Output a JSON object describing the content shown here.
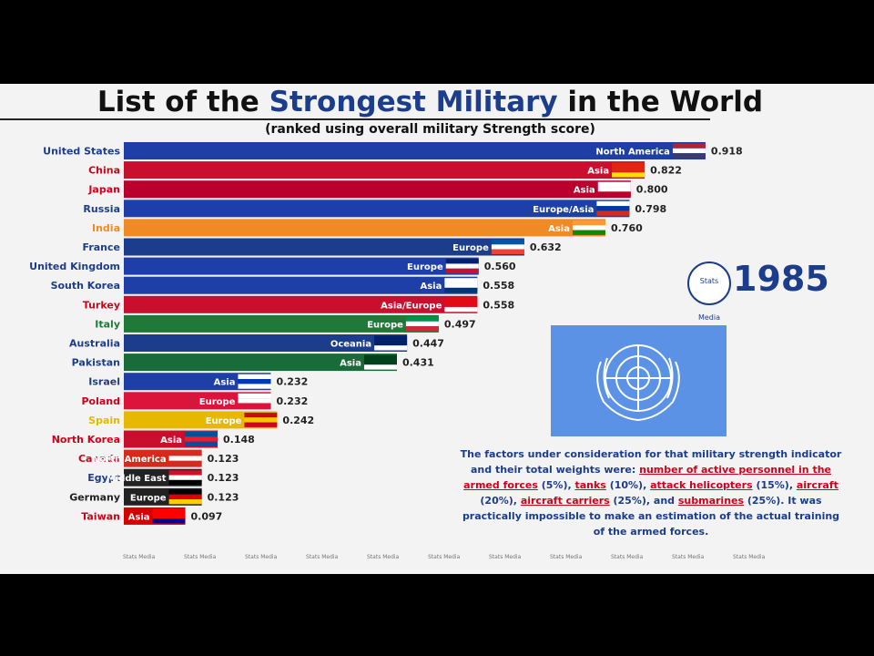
{
  "page": {
    "title_part1": "List of the ",
    "title_highlight": "Strongest Military",
    "title_part2": " in the World",
    "subtitle": "(ranked using overall military Strength score)",
    "year": "1985",
    "badge_text": "Stats Media",
    "note": {
      "intro": "The factors under consideration for that military strength indicator and their total weights were: ",
      "f1": "number of active personnel in the armed forces",
      "t1": " (5%), ",
      "f2": "tanks",
      "t2": " (10%), ",
      "f3": "attack helicopters",
      "t3": " (15%), ",
      "f4": "aircraft",
      "t4": " (20%), ",
      "f5": "aircraft carriers",
      "t5": " (25%), and ",
      "f6": "submarines",
      "t6": " (25%). It was practically impossible to make an estimation of the actual training of the armed forces."
    },
    "watermark": "Stats Media",
    "colors": {
      "brand": "#1c3d8c",
      "highlight": "#d0021b",
      "un_blue": "#5b92e5"
    }
  },
  "chart_data": {
    "type": "bar",
    "orientation": "horizontal",
    "categories": [
      "United States",
      "China",
      "Japan",
      "Russia",
      "India",
      "France",
      "United Kingdom",
      "South Korea",
      "Turkey",
      "Italy",
      "Australia",
      "Pakistan",
      "Israel",
      "Poland",
      "Spain",
      "North Korea",
      "Canada",
      "Egypt",
      "Germany",
      "Taiwan"
    ],
    "values": [
      0.918,
      0.822,
      0.8,
      0.798,
      0.76,
      0.632,
      0.56,
      0.558,
      0.558,
      0.497,
      0.447,
      0.431,
      0.232,
      0.232,
      0.242,
      0.148,
      0.123,
      0.123,
      0.123,
      0.097
    ],
    "value_labels": [
      "0.918",
      "0.822",
      "0.800",
      "0.798",
      "0.760",
      "0.632",
      "0.560",
      "0.558",
      "0.558",
      "0.497",
      "0.447",
      "0.431",
      "0.232",
      "0.232",
      "0.242",
      "0.148",
      "0.123",
      "0.123",
      "0.123",
      "0.097"
    ],
    "regions": [
      "North America",
      "Asia",
      "Asia",
      "Europe/Asia",
      "Asia",
      "Europe",
      "Europe",
      "Asia",
      "Asia/Europe",
      "Europe",
      "Oceania",
      "Asia",
      "Asia",
      "Europe",
      "Europe",
      "Asia",
      "North America",
      "Middle East",
      "Europe",
      "Asia"
    ],
    "bar_colors": [
      "#1f3fa8",
      "#c8102e",
      "#bc002d",
      "#1f3fa8",
      "#f08a24",
      "#1c3d8c",
      "#1f3fa8",
      "#1f3fa8",
      "#c8102e",
      "#1f7a3a",
      "#1c3d8c",
      "#1a6b3a",
      "#1f3fa8",
      "#dc143c",
      "#e6b800",
      "#c8102e",
      "#d52b1e",
      "#222222",
      "#222222",
      "#d40000"
    ],
    "label_colors": [
      "#1c3d8c",
      "#d0021b",
      "#d0021b",
      "#1c3d8c",
      "#f08a24",
      "#1c3d8c",
      "#1c3d8c",
      "#1c3d8c",
      "#d0021b",
      "#1f7a3a",
      "#1c3d8c",
      "#1c3d8c",
      "#1c3d8c",
      "#d0021b",
      "#e6b800",
      "#d0021b",
      "#d0021b",
      "#1c3d8c",
      "#222222",
      "#d0021b"
    ],
    "flag_colors": [
      [
        "#b22234",
        "#ffffff",
        "#3c3b6e"
      ],
      [
        "#de2910",
        "#de2910",
        "#ffde00"
      ],
      [
        "#ffffff",
        "#ffffff",
        "#bc002d"
      ],
      [
        "#ffffff",
        "#0039a6",
        "#d52b1e"
      ],
      [
        "#ff9933",
        "#ffffff",
        "#138808"
      ],
      [
        "#0055a4",
        "#ffffff",
        "#ef4135"
      ],
      [
        "#012169",
        "#ffffff",
        "#c8102e"
      ],
      [
        "#ffffff",
        "#ffffff",
        "#003478"
      ],
      [
        "#e30a17",
        "#e30a17",
        "#ffffff"
      ],
      [
        "#009246",
        "#ffffff",
        "#ce2b37"
      ],
      [
        "#012169",
        "#012169",
        "#ffffff"
      ],
      [
        "#01411c",
        "#01411c",
        "#ffffff"
      ],
      [
        "#ffffff",
        "#0038b8",
        "#ffffff"
      ],
      [
        "#ffffff",
        "#ffffff",
        "#dc143c"
      ],
      [
        "#c60b1e",
        "#ffc400",
        "#c60b1e"
      ],
      [
        "#024fa2",
        "#ed1c27",
        "#024fa2"
      ],
      [
        "#d52b1e",
        "#ffffff",
        "#d52b1e"
      ],
      [
        "#ce1126",
        "#ffffff",
        "#000000"
      ],
      [
        "#000000",
        "#dd0000",
        "#ffce00"
      ],
      [
        "#fe0000",
        "#fe0000",
        "#000095"
      ]
    ],
    "xlim": [
      0,
      1
    ],
    "title": "List of the Strongest Military in the World",
    "subtitle": "(ranked using overall military Strength score)",
    "legend": "none",
    "grid": false
  }
}
